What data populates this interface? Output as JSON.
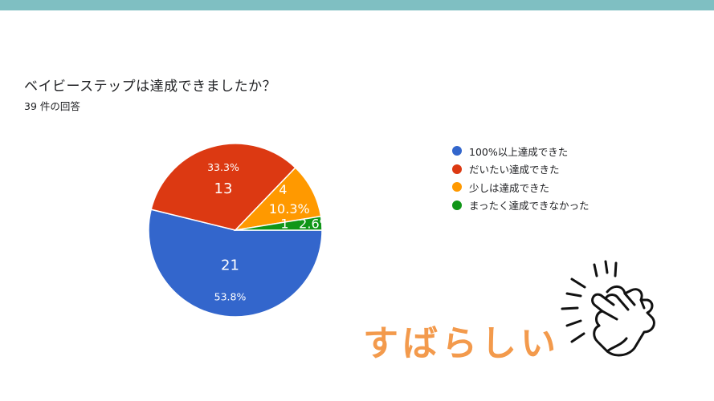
{
  "question": {
    "title": "ベイビーステップは達成できましたか？",
    "response_count": "39 件の回答"
  },
  "praise_text": "すばらしい",
  "decoration": {
    "icon": "clapping-hands-icon"
  },
  "chart_data": {
    "type": "pie",
    "total": 39,
    "slices": [
      {
        "label": "100%以上達成できた",
        "value": 21,
        "percent_label": "53.8%",
        "color": "#3366cc"
      },
      {
        "label": "だいたい達成できた",
        "value": 13,
        "percent_label": "33.3%",
        "color": "#dc3912"
      },
      {
        "label": "少しは達成できた",
        "value": 4,
        "percent_label": "10.3%",
        "color": "#ff9900"
      },
      {
        "label": "まったく達成できなかった",
        "value": 1,
        "percent_label": "2.6%",
        "color": "#109618"
      }
    ],
    "legend": "right"
  }
}
